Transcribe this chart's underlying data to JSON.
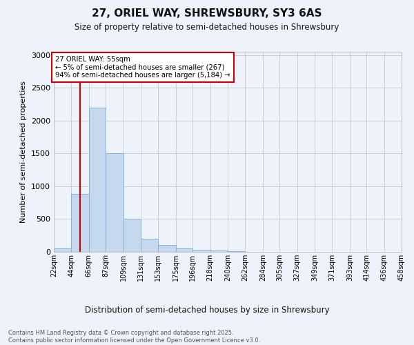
{
  "title": "27, ORIEL WAY, SHREWSBURY, SY3 6AS",
  "subtitle": "Size of property relative to semi-detached houses in Shrewsbury",
  "xlabel": "Distribution of semi-detached houses by size in Shrewsbury",
  "ylabel": "Number of semi-detached properties",
  "bar_color": "#c5d8ee",
  "bar_edge_color": "#7aadd4",
  "bg_color": "#edf2fb",
  "grid_color": "#c8c8d0",
  "annotation_text": "27 ORIEL WAY: 55sqm\n← 5% of semi-detached houses are smaller (267)\n94% of semi-detached houses are larger (5,184) →",
  "vline_x": 55,
  "vline_color": "#cc0000",
  "footer_text": "Contains HM Land Registry data © Crown copyright and database right 2025.\nContains public sector information licensed under the Open Government Licence v3.0.",
  "bin_edges": [
    22,
    44,
    66,
    87,
    109,
    131,
    153,
    175,
    196,
    218,
    240,
    262,
    284,
    305,
    327,
    349,
    371,
    393,
    414,
    436,
    458
  ],
  "bin_labels": [
    "22sqm",
    "44sqm",
    "66sqm",
    "87sqm",
    "109sqm",
    "131sqm",
    "153sqm",
    "175sqm",
    "196sqm",
    "218sqm",
    "240sqm",
    "262sqm",
    "284sqm",
    "305sqm",
    "327sqm",
    "349sqm",
    "371sqm",
    "393sqm",
    "414sqm",
    "436sqm",
    "458sqm"
  ],
  "bar_heights": [
    50,
    880,
    2200,
    1500,
    500,
    200,
    100,
    55,
    30,
    20,
    10,
    5,
    3,
    2,
    1,
    1,
    0,
    0,
    0,
    0
  ],
  "ylim": [
    0,
    3050
  ],
  "yticks": [
    0,
    500,
    1000,
    1500,
    2000,
    2500,
    3000
  ]
}
